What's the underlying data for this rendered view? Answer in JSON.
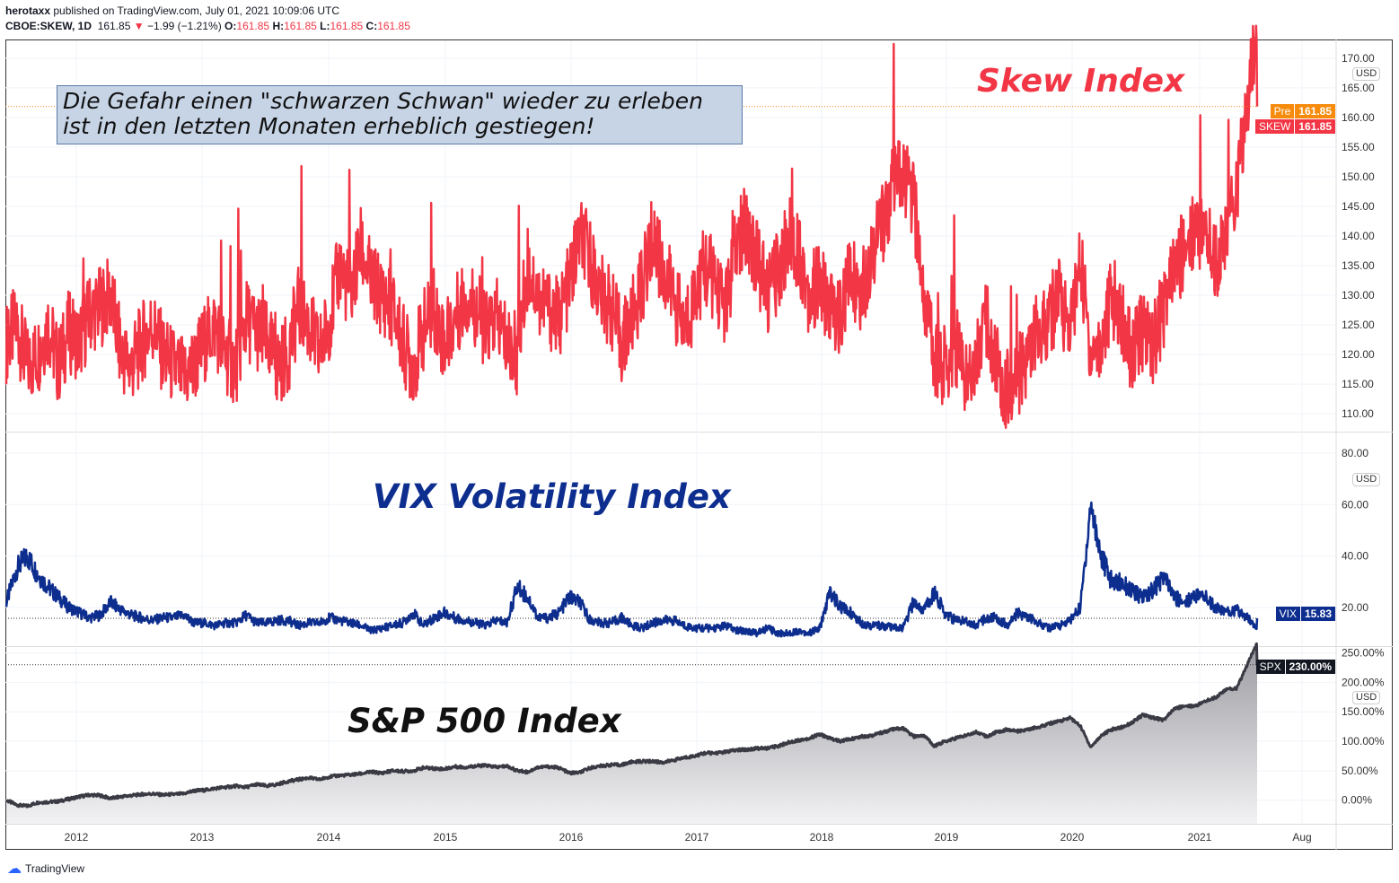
{
  "header": {
    "author": "herotaxx",
    "published": "published on TradingView.com, July 01, 2021 10:09:06 UTC",
    "symbol": "CBOE:SKEW, 1D",
    "last": "161.85",
    "change": "−1.99 (−1.21%)",
    "o_label": "O:",
    "o": "161.85",
    "h_label": "H:",
    "h": "161.85",
    "l_label": "L:",
    "l": "161.85",
    "c_label": "C:",
    "c": "161.85"
  },
  "annotation": {
    "line1": "Die Gefahr einen \"schwarzen Schwan\" wieder zu erleben",
    "line2": "ist in den letzten Monaten erheblich gestiegen!"
  },
  "titles": {
    "skew": "Skew Index",
    "vix": "VIX Volatility Index",
    "spx": "S&P 500 Index"
  },
  "tags": {
    "pre_label": "Pre",
    "pre_value": "161.85",
    "skew_label": "SKEW",
    "skew_value": "161.85",
    "vix_label": "VIX",
    "vix_value": "15.83",
    "spx_label": "SPX",
    "spx_value": "230.00%",
    "currency": "USD"
  },
  "footer": {
    "brand": "TradingView"
  },
  "colors": {
    "skew": "#f23645",
    "vix": "#0d2e8f",
    "spx": "#3a3a44",
    "pre": "#f68b0c"
  },
  "chart_data": [
    {
      "type": "line",
      "name": "SKEW",
      "title": "Skew Index",
      "start": "2011-07",
      "step": "month",
      "ylim": [
        107,
        173
      ],
      "yticks": [
        "170.00",
        "165.00",
        "160.00",
        "155.00",
        "150.00",
        "145.00",
        "140.00",
        "135.00",
        "130.00",
        "125.00",
        "120.00",
        "115.00",
        "110.00"
      ],
      "values": [
        122,
        125,
        118,
        120,
        125,
        118,
        124,
        122,
        127,
        128,
        130,
        120,
        118,
        122,
        125,
        120,
        118,
        116,
        118,
        122,
        125,
        120,
        118,
        126,
        124,
        122,
        118,
        120,
        128,
        125,
        120,
        126,
        135,
        130,
        138,
        132,
        130,
        128,
        122,
        118,
        124,
        128,
        122,
        126,
        130,
        128,
        124,
        126,
        122,
        120,
        135,
        130,
        128,
        126,
        132,
        140,
        136,
        130,
        128,
        122,
        126,
        132,
        140,
        134,
        130,
        124,
        130,
        135,
        132,
        128,
        138,
        142,
        136,
        130,
        134,
        140,
        138,
        130,
        132,
        128,
        126,
        134,
        130,
        138,
        142,
        148,
        150,
        146,
        130,
        120,
        118,
        122,
        116,
        120,
        126,
        118,
        114,
        116,
        120,
        124,
        126,
        130,
        124,
        136,
        120,
        122,
        130,
        126,
        120,
        124,
        122,
        128,
        134,
        138,
        142,
        140,
        136,
        140,
        148,
        161.85
      ]
    },
    {
      "type": "line",
      "name": "VIX",
      "title": "VIX Volatility Index",
      "start": "2011-07",
      "step": "month",
      "ylim": [
        5,
        88
      ],
      "yticks": [
        "80.00",
        "60.00",
        "40.00",
        "20.00"
      ],
      "values": [
        22,
        35,
        40,
        33,
        28,
        24,
        20,
        18,
        16,
        17,
        22,
        19,
        17,
        16,
        15,
        16,
        16,
        17,
        14,
        14,
        13,
        14,
        14,
        17,
        14,
        14,
        15,
        15,
        13,
        14,
        14,
        16,
        15,
        14,
        13,
        11,
        12,
        13,
        14,
        18,
        13,
        16,
        18,
        16,
        15,
        14,
        13,
        15,
        14,
        28,
        24,
        16,
        16,
        18,
        24,
        22,
        15,
        14,
        14,
        16,
        13,
        12,
        14,
        15,
        15,
        13,
        12,
        12,
        12,
        13,
        11,
        11,
        10,
        12,
        10,
        10,
        11,
        10,
        12,
        26,
        20,
        18,
        14,
        13,
        13,
        12,
        12,
        22,
        19,
        26,
        18,
        15,
        15,
        13,
        16,
        16,
        13,
        18,
        16,
        14,
        12,
        13,
        15,
        20,
        60,
        40,
        30,
        30,
        26,
        24,
        27,
        32,
        24,
        22,
        25,
        24,
        20,
        18,
        19,
        15.83
      ]
    },
    {
      "type": "area",
      "name": "SPX",
      "title": "S&P 500 Index",
      "start": "2011-07",
      "step": "month",
      "unit": "%",
      "ylim": [
        -40,
        260
      ],
      "yticks": [
        "250.00%",
        "200.00%",
        "150.00%",
        "100.00%",
        "50.00%",
        "0.00%"
      ],
      "values": [
        0,
        -8,
        -10,
        -4,
        -3,
        -2,
        2,
        6,
        9,
        8,
        3,
        6,
        8,
        10,
        11,
        9,
        10,
        11,
        16,
        17,
        20,
        22,
        24,
        22,
        27,
        24,
        27,
        32,
        35,
        38,
        35,
        40,
        42,
        43,
        45,
        48,
        46,
        50,
        49,
        50,
        55,
        54,
        53,
        57,
        56,
        58,
        59,
        56,
        58,
        50,
        48,
        56,
        57,
        55,
        46,
        47,
        55,
        58,
        60,
        60,
        65,
        66,
        66,
        64,
        68,
        72,
        75,
        80,
        80,
        82,
        85,
        86,
        88,
        88,
        92,
        98,
        102,
        105,
        112,
        105,
        100,
        104,
        108,
        110,
        115,
        120,
        122,
        108,
        110,
        92,
        100,
        105,
        110,
        116,
        108,
        116,
        120,
        117,
        120,
        124,
        130,
        134,
        140,
        126,
        90,
        110,
        120,
        124,
        132,
        145,
        140,
        136,
        155,
        160,
        160,
        168,
        175,
        188,
        190,
        230
      ]
    },
    {
      "type": "time-axis",
      "ticks": [
        "2012",
        "2013",
        "2014",
        "2015",
        "2016",
        "2017",
        "2018",
        "2019",
        "2020",
        "2021",
        "Aug"
      ]
    }
  ]
}
